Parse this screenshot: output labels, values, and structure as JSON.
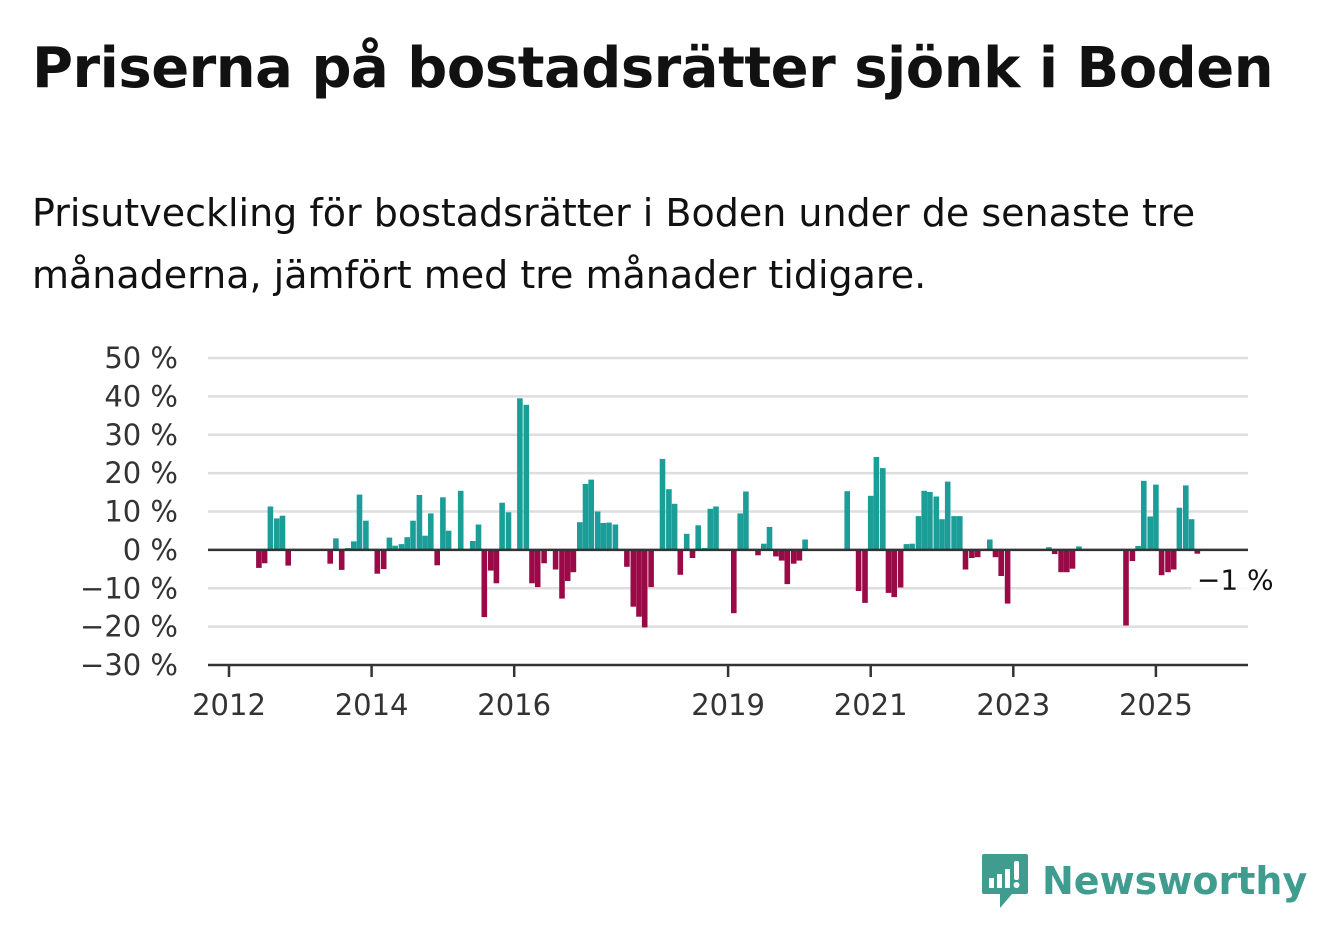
{
  "title": "Priserna på bostadsrätter sjönk i Boden",
  "subtitle": "Prisutveckling för bostadsrätter i Boden under de senaste tre månaderna, jämfört med tre månader tidigare.",
  "brand": "Newsworthy",
  "colors": {
    "positive": "#1a9e97",
    "negative": "#9a0a47",
    "brand": "#3f9c8f"
  },
  "chart_data": {
    "type": "bar",
    "unit": "%",
    "ylim": [
      -30,
      50
    ],
    "y_ticks": [
      50,
      40,
      30,
      20,
      10,
      0,
      -10,
      -20,
      -30
    ],
    "y_tick_labels": [
      "50 %",
      "40 %",
      "30 %",
      "20 %",
      "10 %",
      "0 %",
      "−10 %",
      "−20 %",
      "−30 %"
    ],
    "x_tick_labels": [
      "2012",
      "2014",
      "2016",
      "2019",
      "2021",
      "2023",
      "2025"
    ],
    "x_tick_years": [
      2012,
      2014,
      2016,
      2019,
      2021,
      2023,
      2025
    ],
    "grid": true,
    "last_value_label": "−1 %",
    "series": [
      {
        "values": [
          [
            2012.42,
            -4.7
          ],
          [
            2012.5,
            -3.5
          ],
          [
            2012.58,
            11.3
          ],
          [
            2012.67,
            8.2
          ],
          [
            2012.75,
            8.9
          ],
          [
            2012.83,
            -4.1
          ],
          [
            2013.42,
            -3.6
          ],
          [
            2013.5,
            3.0
          ],
          [
            2013.58,
            -5.2
          ],
          [
            2013.67,
            0.5
          ],
          [
            2013.75,
            2.2
          ],
          [
            2013.83,
            14.4
          ],
          [
            2013.92,
            7.6
          ],
          [
            2014.08,
            -6.2
          ],
          [
            2014.17,
            -5.0
          ],
          [
            2014.25,
            3.2
          ],
          [
            2014.33,
            1.1
          ],
          [
            2014.42,
            1.5
          ],
          [
            2014.5,
            3.3
          ],
          [
            2014.58,
            7.6
          ],
          [
            2014.67,
            14.3
          ],
          [
            2014.75,
            3.7
          ],
          [
            2014.83,
            9.5
          ],
          [
            2014.92,
            -4.0
          ],
          [
            2015.0,
            13.7
          ],
          [
            2015.08,
            5.0
          ],
          [
            2015.25,
            15.4
          ],
          [
            2015.42,
            2.3
          ],
          [
            2015.5,
            6.6
          ],
          [
            2015.58,
            -17.5
          ],
          [
            2015.67,
            -5.4
          ],
          [
            2015.75,
            -8.7
          ],
          [
            2015.83,
            12.3
          ],
          [
            2015.92,
            9.8
          ],
          [
            2016.08,
            39.5
          ],
          [
            2016.17,
            37.8
          ],
          [
            2016.25,
            -8.7
          ],
          [
            2016.33,
            -9.7
          ],
          [
            2016.42,
            -3.5
          ],
          [
            2016.58,
            -5.1
          ],
          [
            2016.67,
            -12.7
          ],
          [
            2016.75,
            -8.1
          ],
          [
            2016.83,
            -5.8
          ],
          [
            2016.92,
            7.2
          ],
          [
            2017.0,
            17.2
          ],
          [
            2017.08,
            18.3
          ],
          [
            2017.17,
            10.0
          ],
          [
            2017.25,
            7.0
          ],
          [
            2017.33,
            7.1
          ],
          [
            2017.42,
            6.6
          ],
          [
            2017.58,
            -4.4
          ],
          [
            2017.67,
            -14.8
          ],
          [
            2017.75,
            -17.4
          ],
          [
            2017.83,
            -20.2
          ],
          [
            2017.92,
            -9.7
          ],
          [
            2018.08,
            23.7
          ],
          [
            2018.17,
            15.8
          ],
          [
            2018.25,
            12.0
          ],
          [
            2018.33,
            -6.5
          ],
          [
            2018.42,
            4.2
          ],
          [
            2018.5,
            -2.1
          ],
          [
            2018.58,
            6.4
          ],
          [
            2018.67,
            0.5
          ],
          [
            2018.75,
            10.7
          ],
          [
            2018.83,
            11.3
          ],
          [
            2019.08,
            -16.5
          ],
          [
            2019.17,
            9.5
          ],
          [
            2019.25,
            15.2
          ],
          [
            2019.42,
            -1.4
          ],
          [
            2019.5,
            1.6
          ],
          [
            2019.58,
            6.0
          ],
          [
            2019.67,
            -1.7
          ],
          [
            2019.75,
            -2.8
          ],
          [
            2019.83,
            -8.9
          ],
          [
            2019.92,
            -3.6
          ],
          [
            2020.0,
            -2.8
          ],
          [
            2020.08,
            2.7
          ],
          [
            2020.67,
            15.3
          ],
          [
            2020.83,
            -10.7
          ],
          [
            2020.92,
            -13.8
          ],
          [
            2021.0,
            14.1
          ],
          [
            2021.08,
            24.2
          ],
          [
            2021.17,
            21.3
          ],
          [
            2021.25,
            -11.2
          ],
          [
            2021.33,
            -12.3
          ],
          [
            2021.42,
            -9.8
          ],
          [
            2021.5,
            1.5
          ],
          [
            2021.58,
            1.6
          ],
          [
            2021.67,
            8.8
          ],
          [
            2021.75,
            15.4
          ],
          [
            2021.83,
            15.1
          ],
          [
            2021.92,
            13.9
          ],
          [
            2022.0,
            8.0
          ],
          [
            2022.08,
            17.8
          ],
          [
            2022.17,
            8.8
          ],
          [
            2022.25,
            8.8
          ],
          [
            2022.33,
            -5.1
          ],
          [
            2022.42,
            -2.1
          ],
          [
            2022.5,
            -1.9
          ],
          [
            2022.67,
            2.7
          ],
          [
            2022.75,
            -1.9
          ],
          [
            2022.83,
            -6.8
          ],
          [
            2022.92,
            -14.0
          ],
          [
            2023.5,
            0.7
          ],
          [
            2023.58,
            -1.1
          ],
          [
            2023.67,
            -5.8
          ],
          [
            2023.75,
            -5.8
          ],
          [
            2023.83,
            -4.9
          ],
          [
            2023.92,
            0.9
          ],
          [
            2024.58,
            -19.7
          ],
          [
            2024.67,
            -2.9
          ],
          [
            2024.75,
            1.0
          ],
          [
            2024.83,
            18.0
          ],
          [
            2024.92,
            8.7
          ],
          [
            2025.0,
            17.0
          ],
          [
            2025.08,
            -6.6
          ],
          [
            2025.17,
            -5.8
          ],
          [
            2025.25,
            -5.1
          ],
          [
            2025.33,
            11.0
          ],
          [
            2025.42,
            16.8
          ],
          [
            2025.5,
            8.0
          ],
          [
            2025.58,
            -1.0
          ]
        ]
      }
    ]
  }
}
